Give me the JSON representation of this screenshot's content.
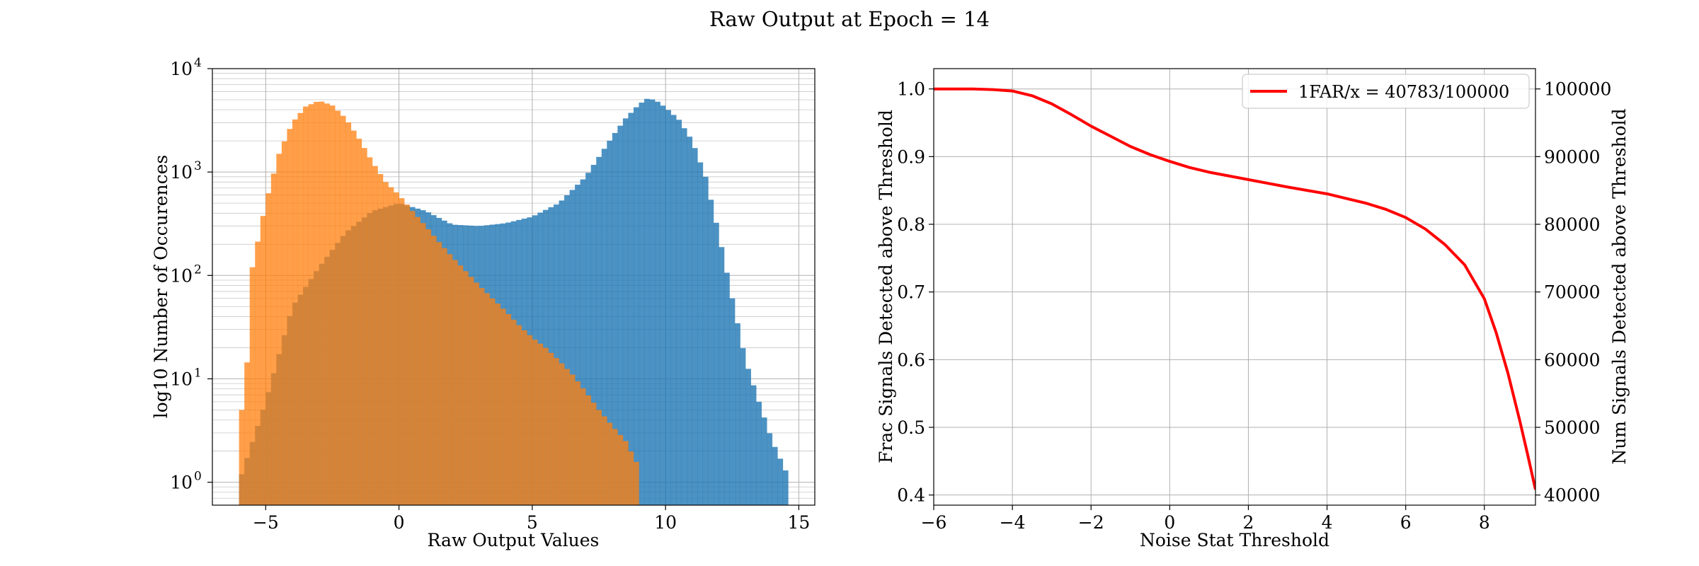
{
  "figure": {
    "title": "Raw Output at Epoch = 14"
  },
  "chart_data": [
    {
      "type": "histogram",
      "xlabel": "Raw Output Values",
      "ylabel": "log10 Number of Occurences",
      "xlim": [
        -7,
        15.6
      ],
      "ylim": [
        0.6,
        10000
      ],
      "yscale": "log",
      "x_ticks": [
        {
          "value": -5,
          "label": "−5"
        },
        {
          "value": 0,
          "label": "0"
        },
        {
          "value": 5,
          "label": "5"
        },
        {
          "value": 10,
          "label": "10"
        },
        {
          "value": 15,
          "label": "15"
        }
      ],
      "y_ticks": [
        {
          "value": 1,
          "base": "10",
          "exp": "0"
        },
        {
          "value": 10,
          "base": "10",
          "exp": "1"
        },
        {
          "value": 100,
          "base": "10",
          "exp": "2"
        },
        {
          "value": 1000,
          "base": "10",
          "exp": "3"
        },
        {
          "value": 10000,
          "base": "10",
          "exp": "4"
        }
      ],
      "grid": true,
      "series": [
        {
          "color": "#1f77b4",
          "opacity": 0.8,
          "points": [
            [
              -6.0,
              1
            ],
            [
              -5.0,
              6
            ],
            [
              -4.0,
              50
            ],
            [
              -3.0,
              120
            ],
            [
              -2.0,
              260
            ],
            [
              -1.0,
              420
            ],
            [
              0.0,
              500
            ],
            [
              1.0,
              420
            ],
            [
              1.5,
              360
            ],
            [
              2.0,
              310
            ],
            [
              3.0,
              300
            ],
            [
              4.0,
              320
            ],
            [
              5.0,
              370
            ],
            [
              6.0,
              500
            ],
            [
              7.0,
              900
            ],
            [
              7.5,
              1400
            ],
            [
              8.0,
              2200
            ],
            [
              8.5,
              3300
            ],
            [
              9.0,
              4500
            ],
            [
              9.3,
              5100
            ],
            [
              9.6,
              5000
            ],
            [
              10.0,
              4200
            ],
            [
              10.5,
              3200
            ],
            [
              11.0,
              2000
            ],
            [
              11.5,
              900
            ],
            [
              12.0,
              250
            ],
            [
              12.5,
              60
            ],
            [
              13.0,
              15
            ],
            [
              13.5,
              6
            ],
            [
              14.0,
              2.5
            ],
            [
              14.5,
              1.3
            ],
            [
              14.8,
              0
            ]
          ]
        },
        {
          "color": "#ff7f0e",
          "opacity": 0.75,
          "points": [
            [
              -6.2,
              0
            ],
            [
              -5.8,
              5
            ],
            [
              -5.5,
              120
            ],
            [
              -5.0,
              500
            ],
            [
              -4.5,
              1500
            ],
            [
              -4.0,
              3000
            ],
            [
              -3.5,
              4300
            ],
            [
              -3.0,
              4900
            ],
            [
              -2.5,
              4400
            ],
            [
              -2.0,
              3300
            ],
            [
              -1.5,
              2100
            ],
            [
              -1.0,
              1250
            ],
            [
              -0.5,
              800
            ],
            [
              0.0,
              600
            ],
            [
              0.5,
              420
            ],
            [
              1.0,
              300
            ],
            [
              1.5,
              210
            ],
            [
              2.0,
              150
            ],
            [
              2.5,
              110
            ],
            [
              3.0,
              80
            ],
            [
              3.5,
              60
            ],
            [
              4.0,
              45
            ],
            [
              4.5,
              33
            ],
            [
              5.0,
              25
            ],
            [
              5.5,
              20
            ],
            [
              6.0,
              15
            ],
            [
              6.5,
              11
            ],
            [
              7.0,
              7.5
            ],
            [
              7.5,
              5
            ],
            [
              8.0,
              3.5
            ],
            [
              8.5,
              2.5
            ],
            [
              9.0,
              1.4
            ],
            [
              9.2,
              0
            ]
          ]
        }
      ]
    },
    {
      "type": "line",
      "xlabel": "Noise Stat Threshold",
      "ylabel": "Frac Signals Detected above Threshold",
      "ylabel_right": "Num Signals Detected above Threshold",
      "xlim": [
        -6,
        9.3
      ],
      "ylim": [
        0.385,
        1.03
      ],
      "ylim_right": [
        38500,
        103000
      ],
      "x_ticks": [
        {
          "value": -6,
          "label": "−6"
        },
        {
          "value": -4,
          "label": "−4"
        },
        {
          "value": -2,
          "label": "−2"
        },
        {
          "value": 0,
          "label": "0"
        },
        {
          "value": 2,
          "label": "2"
        },
        {
          "value": 4,
          "label": "4"
        },
        {
          "value": 6,
          "label": "6"
        },
        {
          "value": 8,
          "label": "8"
        }
      ],
      "y_ticks": [
        {
          "value": 0.4,
          "label": "0.4"
        },
        {
          "value": 0.5,
          "label": "0.5"
        },
        {
          "value": 0.6,
          "label": "0.6"
        },
        {
          "value": 0.7,
          "label": "0.7"
        },
        {
          "value": 0.8,
          "label": "0.8"
        },
        {
          "value": 0.9,
          "label": "0.9"
        },
        {
          "value": 1.0,
          "label": "1.0"
        }
      ],
      "y_ticks_right": [
        {
          "value": 40000,
          "label": "40000"
        },
        {
          "value": 50000,
          "label": "50000"
        },
        {
          "value": 60000,
          "label": "60000"
        },
        {
          "value": 70000,
          "label": "70000"
        },
        {
          "value": 80000,
          "label": "80000"
        },
        {
          "value": 90000,
          "label": "90000"
        },
        {
          "value": 100000,
          "label": "100000"
        }
      ],
      "grid": true,
      "legend_position": "top-right",
      "series": [
        {
          "name": "1FAR/x = 40783/100000",
          "color": "#ff0000",
          "x": [
            -6,
            -5,
            -4.5,
            -4,
            -3.5,
            -3,
            -2.5,
            -2,
            -1.5,
            -1,
            -0.5,
            0,
            0.5,
            1,
            2,
            3,
            4,
            5,
            5.5,
            6,
            6.5,
            7,
            7.5,
            8,
            8.3,
            8.6,
            8.9,
            9.1,
            9.3
          ],
          "y": [
            1.0,
            1.0,
            0.999,
            0.997,
            0.99,
            0.978,
            0.962,
            0.945,
            0.93,
            0.915,
            0.903,
            0.893,
            0.884,
            0.877,
            0.866,
            0.855,
            0.845,
            0.831,
            0.822,
            0.81,
            0.793,
            0.77,
            0.74,
            0.69,
            0.64,
            0.58,
            0.51,
            0.46,
            0.408
          ]
        }
      ]
    }
  ]
}
